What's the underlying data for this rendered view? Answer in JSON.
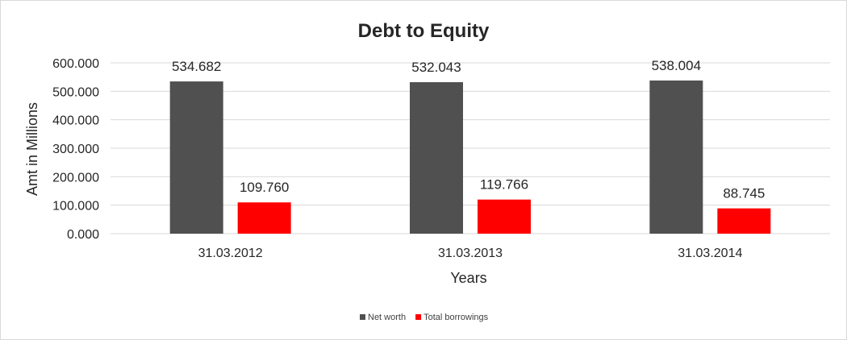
{
  "chart_data": {
    "type": "bar",
    "title": "Debt to Equity",
    "xlabel": "Years",
    "ylabel": "Amt in Millions",
    "categories": [
      "31.03.2012",
      "31.03.2013",
      "31.03.2014"
    ],
    "series": [
      {
        "name": "Net worth",
        "values": [
          534.682,
          532.043,
          538.004
        ],
        "color": "#505050"
      },
      {
        "name": "Total borrowings",
        "values": [
          109.76,
          119.766,
          88.745
        ],
        "color": "#ff0000"
      }
    ],
    "data_labels": [
      [
        "534.682",
        "532.043",
        "538.004"
      ],
      [
        "109.760",
        "119.766",
        "88.745"
      ]
    ],
    "ylim": [
      0,
      600
    ],
    "yticks": [
      0,
      100,
      200,
      300,
      400,
      500,
      600
    ],
    "ytick_labels": [
      "0.000",
      "100.000",
      "200.000",
      "300.000",
      "400.000",
      "500.000",
      "600.000"
    ],
    "grid": true,
    "legend_position": "bottom"
  }
}
